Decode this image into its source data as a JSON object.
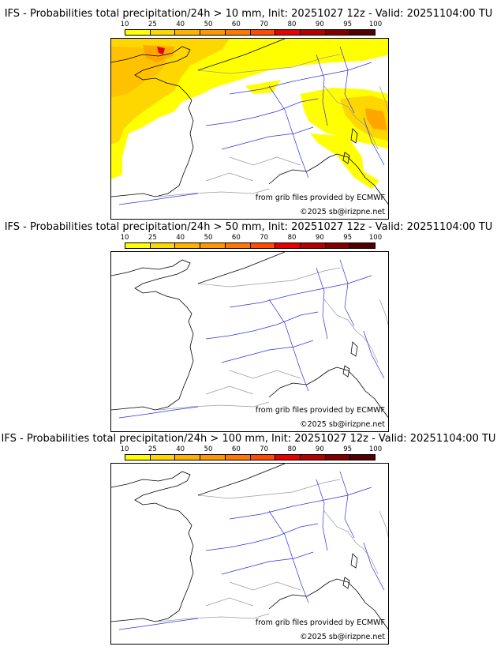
{
  "legend": {
    "ticks": [
      "10",
      "25",
      "40",
      "50",
      "60",
      "70",
      "80",
      "90",
      "95",
      "100"
    ],
    "colors": [
      "#ffff00",
      "#ffd700",
      "#ffb300",
      "#ff9800",
      "#ff7800",
      "#ff4c00",
      "#e60000",
      "#b40000",
      "#820000",
      "#500000"
    ]
  },
  "panels": [
    {
      "title": "IFS - Probabilities total precipitation/24h > 10 mm, Init: 20251027 12z - Valid: 20251104:00 TU"
    },
    {
      "title": "IFS - Probabilities total precipitation/24h > 50 mm, Init: 20251027 12z - Valid: 20251104:00 TU"
    },
    {
      "title": "IFS - Probabilities total precipitation/24h > 100 mm, Init: 20251027 12z - Valid: 20251104:00 TU"
    }
  ],
  "credits": {
    "source": "from grib files provided by ECMWF",
    "copyright": "©2025 sb@irizpne.net"
  }
}
